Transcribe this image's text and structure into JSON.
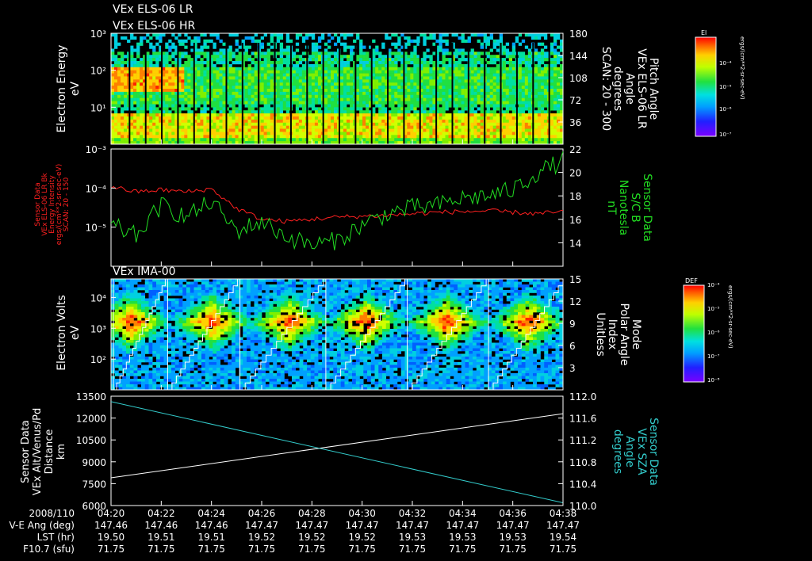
{
  "colors": {
    "background": "#000000",
    "axes": "#ffffff",
    "red_series": "#ff2020",
    "green_series": "#22dd22",
    "cyan_series": "#33cccc",
    "white_series": "#ffffff"
  },
  "panel_titles": {
    "els_lr": "VEx ELS-06 LR",
    "els_hr": "VEx ELS-06 HR",
    "ima": "VEx IMA-00"
  },
  "axis_labels": {
    "p1_left": [
      "Electron Energy",
      "eV"
    ],
    "p1_right": [
      "Pitch Angle",
      "VEx ELS-06 LR",
      "Angle",
      "degrees",
      "SCAN: 20 - 300"
    ],
    "p2_left": [
      "Sensor Data",
      "VEx ELS-06 LR Bk",
      "Energy Intensity",
      "(cm**2-sr-sec-eV)",
      "SCAN: 20 - 150"
    ],
    "p2_left_extra": "ergs/",
    "p2_right": [
      "Sensor Data",
      "S/C B",
      "Nanotesla",
      "nT"
    ],
    "p3_left": [
      "Electron Volts",
      "eV"
    ],
    "p3_right": [
      "Mode",
      "Polar Angle",
      "Index",
      "Unitless"
    ],
    "p4_left": [
      "Sensor Data",
      "VEx Alt/Venus/Pd",
      "Distance",
      "km"
    ],
    "p4_right": [
      "Sensor Data",
      "VEx SZA",
      "Angle",
      "degrees"
    ]
  },
  "colorbars": {
    "el": {
      "title": "El",
      "tick_labels": [
        "10⁻⁴",
        "10⁻⁵",
        "10⁻⁶",
        "10⁻⁷"
      ],
      "unit": "ergs/(cm**2-sr-sec-eV)"
    },
    "def": {
      "title": "DEF",
      "tick_labels": [
        "10⁻⁴",
        "10⁻⁵",
        "10⁻⁶",
        "10⁻⁷",
        "10⁻⁸"
      ],
      "unit": "ergs/(cm**2-sr-sec-eV)"
    }
  },
  "time_table": {
    "row_labels": [
      "2008/110",
      "V-E Ang (deg)",
      "LST (hr)",
      "F10.7 (sfu)"
    ],
    "times": [
      "04:20",
      "04:22",
      "04:24",
      "04:26",
      "04:28",
      "04:30",
      "04:32",
      "04:34",
      "04:36",
      "04:38"
    ],
    "ve_ang": [
      "147.46",
      "147.46",
      "147.46",
      "147.47",
      "147.47",
      "147.47",
      "147.47",
      "147.47",
      "147.47",
      "147.47"
    ],
    "lst": [
      "19.50",
      "19.51",
      "19.51",
      "19.52",
      "19.52",
      "19.52",
      "19.53",
      "19.53",
      "19.53",
      "19.54"
    ],
    "f107": [
      "71.75",
      "71.75",
      "71.75",
      "71.75",
      "71.75",
      "71.75",
      "71.75",
      "71.75",
      "71.75",
      "71.75"
    ]
  },
  "chart_data": [
    {
      "type": "heatmap",
      "title": "VEx ELS-06 LR / VEx ELS-06 HR",
      "xlabel": "",
      "ylabel": "Electron Energy eV",
      "y_scale": "log",
      "ylim": [
        1,
        1000
      ],
      "y_tick_labels": [
        "10¹",
        "10²",
        "10³"
      ],
      "y2label": "Pitch Angle VEx ELS-06 LR Angle degrees SCAN: 20 - 300",
      "y2lim": [
        0,
        180
      ],
      "y2_ticks": [
        36,
        72,
        108,
        144,
        180
      ],
      "xlim": [
        "04:20",
        "04:38"
      ]
    },
    {
      "type": "line",
      "ylabel": "Sensor Data VEx ELS-06 LR Bk Energy Intensity ergs/(cm**2-sr-sec-eV) SCAN: 20 - 150",
      "y_scale": "log",
      "ylim": [
        1e-06,
        0.001
      ],
      "y_tick_labels": [
        "10⁻⁵",
        "10⁻⁴",
        "10⁻³"
      ],
      "y2label": "Sensor Data S/C B Nanotesla nT",
      "y2lim": [
        12,
        22
      ],
      "y2_ticks": [
        14,
        16,
        18,
        20,
        22
      ],
      "x": [
        "04:20",
        "04:21",
        "04:22",
        "04:23",
        "04:24",
        "04:25",
        "04:26",
        "04:27",
        "04:28",
        "04:29",
        "04:30",
        "04:31",
        "04:32",
        "04:33",
        "04:34",
        "04:35",
        "04:36",
        "04:37",
        "04:38"
      ],
      "series": [
        {
          "axis": "left",
          "color": "#ff2020",
          "values": [
            0.00011,
            8e-05,
            9e-05,
            8e-05,
            9.5e-05,
            3e-05,
            1.6e-05,
            1.4e-05,
            1.6e-05,
            1.8e-05,
            1.9e-05,
            2e-05,
            2.2e-05,
            2.4e-05,
            2.5e-05,
            2.6e-05,
            2.4e-05,
            2.2e-05,
            2.5e-05
          ]
        },
        {
          "axis": "right",
          "color": "#22dd22",
          "values": [
            15.5,
            14.6,
            17.2,
            16.2,
            17.5,
            15.0,
            15.8,
            14.5,
            13.8,
            14.2,
            15.5,
            16.5,
            17.0,
            17.2,
            17.8,
            18.0,
            18.5,
            20.0,
            21.0
          ]
        }
      ]
    },
    {
      "type": "heatmap",
      "title": "VEx IMA-00",
      "ylabel": "Electron Volts eV",
      "y_scale": "log",
      "ylim": [
        10,
        40000
      ],
      "y_tick_labels": [
        "10²",
        "10³",
        "10⁴"
      ],
      "y2label": "Mode Polar Angle Index Unitless",
      "y2lim": [
        0,
        15
      ],
      "y2_ticks": [
        3,
        6,
        9,
        12,
        15
      ],
      "xlim": [
        "04:20",
        "04:38"
      ]
    },
    {
      "type": "line",
      "ylabel": "Sensor Data VEx Alt/Venus/Pd Distance km",
      "ylim": [
        6000,
        13500
      ],
      "y_ticks": [
        6000,
        7500,
        9000,
        10500,
        12000,
        13500
      ],
      "y2label": "Sensor Data VEx SZA Angle degrees",
      "y2lim": [
        110.0,
        112.0
      ],
      "y2_ticks": [
        110.0,
        110.4,
        110.8,
        111.2,
        111.6,
        112.0
      ],
      "x": [
        "04:20",
        "04:38"
      ],
      "series": [
        {
          "axis": "left",
          "color": "#ffffff",
          "values": [
            7900,
            12300
          ]
        },
        {
          "axis": "right",
          "color": "#33cccc",
          "values": [
            111.9,
            110.05
          ]
        }
      ]
    }
  ]
}
